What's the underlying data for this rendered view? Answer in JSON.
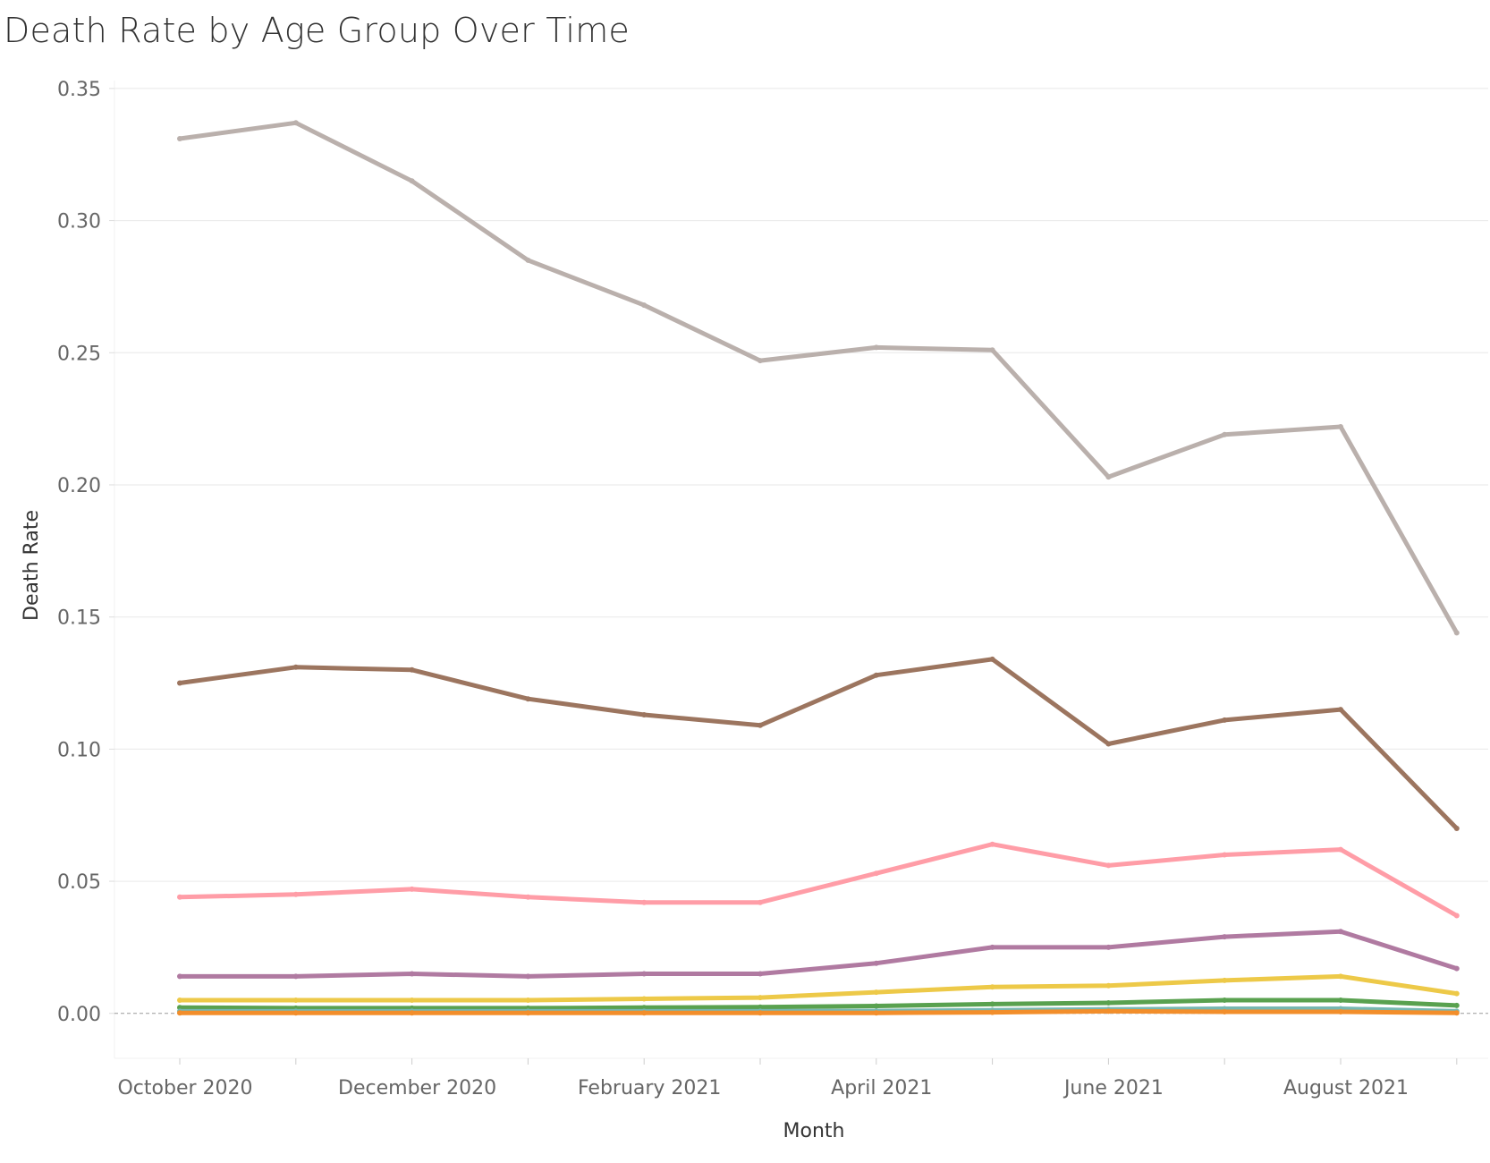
{
  "chart_data": {
    "type": "line",
    "title": "Death Rate by Age Group Over Time",
    "xlabel": "Month",
    "ylabel": "Death Rate",
    "ylim": [
      -0.017,
      0.353
    ],
    "y_ticks": [
      0.35,
      0.3,
      0.25,
      0.2,
      0.15,
      0.1,
      0.05,
      0.0
    ],
    "y_tick_labels": [
      "0.35",
      "0.30",
      "0.25",
      "0.20",
      "0.15",
      "0.10",
      "0.05",
      "0.00"
    ],
    "categories": [
      "2020-10",
      "2020-11",
      "2020-12",
      "2021-01",
      "2021-02",
      "2021-03",
      "2021-04",
      "2021-05",
      "2021-06",
      "2021-07",
      "2021-08",
      "2021-09"
    ],
    "x_tick_labels": [
      {
        "index": 0,
        "label": "October 2020"
      },
      {
        "index": 2,
        "label": "December 2020"
      },
      {
        "index": 4,
        "label": "February 2021"
      },
      {
        "index": 6,
        "label": "April 2021"
      },
      {
        "index": 8,
        "label": "June 2021"
      },
      {
        "index": 10,
        "label": "August 2021"
      }
    ],
    "grid": true,
    "zero_line": "dashed",
    "legend": "none",
    "series": [
      {
        "color": "#BAB0AC",
        "values": [
          0.331,
          0.337,
          0.315,
          0.285,
          0.268,
          0.247,
          0.252,
          0.251,
          0.203,
          0.219,
          0.222,
          0.144
        ]
      },
      {
        "color": "#9C755F",
        "values": [
          0.125,
          0.131,
          0.13,
          0.119,
          0.113,
          0.109,
          0.128,
          0.134,
          0.102,
          0.111,
          0.115,
          0.07
        ]
      },
      {
        "color": "#FF9DA7",
        "values": [
          0.044,
          0.045,
          0.047,
          0.044,
          0.042,
          0.042,
          0.053,
          0.064,
          0.056,
          0.06,
          0.062,
          0.037
        ]
      },
      {
        "color": "#B07AA1",
        "values": [
          0.014,
          0.014,
          0.015,
          0.014,
          0.015,
          0.015,
          0.019,
          0.025,
          0.025,
          0.029,
          0.031,
          0.017
        ]
      },
      {
        "color": "#EDC948",
        "values": [
          0.005,
          0.005,
          0.005,
          0.005,
          0.0055,
          0.006,
          0.008,
          0.01,
          0.0105,
          0.0125,
          0.014,
          0.0075
        ]
      },
      {
        "color": "#59A14F",
        "values": [
          0.0022,
          0.002,
          0.002,
          0.002,
          0.0022,
          0.0024,
          0.0028,
          0.0035,
          0.004,
          0.005,
          0.005,
          0.003
        ]
      },
      {
        "color": "#76B7B2",
        "values": [
          0.0008,
          0.0008,
          0.0008,
          0.0008,
          0.0008,
          0.0008,
          0.0009,
          0.0012,
          0.0015,
          0.0018,
          0.0018,
          0.0008
        ]
      },
      {
        "color": "#F28E2B",
        "values": [
          0.0002,
          0.0002,
          0.0002,
          0.0002,
          0.0002,
          0.0002,
          0.0002,
          0.0004,
          0.0008,
          0.0006,
          0.0006,
          0.0002
        ]
      }
    ]
  }
}
